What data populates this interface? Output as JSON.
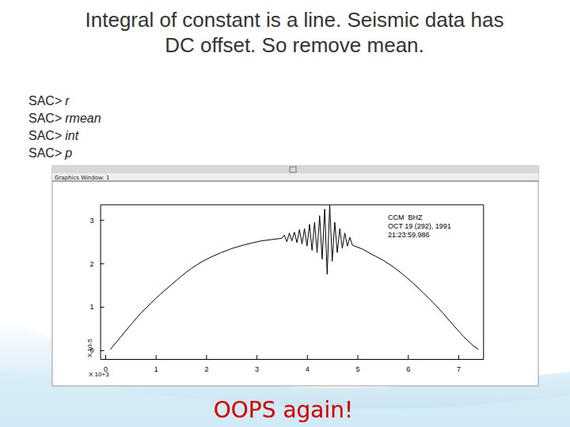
{
  "slide": {
    "title_lines": [
      "Integral of constant is a line. Seismic data has",
      "DC offset. So remove mean."
    ],
    "commands": [
      {
        "prompt": "SAC>",
        "cmd": "r"
      },
      {
        "prompt": "SAC>",
        "cmd": "rmean"
      },
      {
        "prompt": "SAC>",
        "cmd": "int"
      },
      {
        "prompt": "SAC>",
        "cmd": "p"
      }
    ],
    "caption": "OOPS again!"
  },
  "window": {
    "title": "Graphics Window: 1"
  },
  "chart_data": {
    "type": "line",
    "x": [
      0.1,
      0.3,
      0.5,
      0.7,
      0.9,
      1.1,
      1.3,
      1.5,
      1.7,
      1.9,
      2.1,
      2.3,
      2.5,
      2.7,
      2.9,
      3.1,
      3.3,
      3.5,
      3.55,
      3.6,
      3.65,
      3.7,
      3.75,
      3.8,
      3.85,
      3.9,
      3.95,
      4.0,
      4.05,
      4.1,
      4.15,
      4.2,
      4.25,
      4.3,
      4.35,
      4.4,
      4.45,
      4.5,
      4.55,
      4.6,
      4.65,
      4.7,
      4.75,
      4.8,
      4.85,
      4.9,
      5.1,
      5.3,
      5.5,
      5.7,
      5.9,
      6.1,
      6.3,
      6.5,
      6.7,
      6.9,
      7.1,
      7.3,
      7.4
    ],
    "series": [
      {
        "color": "#000000",
        "values": [
          0.02,
          0.3,
          0.58,
          0.85,
          1.08,
          1.3,
          1.5,
          1.7,
          1.88,
          2.03,
          2.15,
          2.25,
          2.34,
          2.41,
          2.47,
          2.52,
          2.55,
          2.58,
          2.65,
          2.5,
          2.7,
          2.52,
          2.72,
          2.48,
          2.78,
          2.45,
          2.8,
          2.4,
          2.9,
          2.3,
          2.95,
          2.25,
          3.1,
          2.1,
          3.25,
          1.75,
          3.35,
          2.05,
          2.95,
          2.25,
          2.8,
          2.35,
          2.7,
          2.4,
          2.6,
          2.42,
          2.33,
          2.2,
          2.08,
          1.93,
          1.75,
          1.55,
          1.33,
          1.1,
          0.85,
          0.58,
          0.32,
          0.1,
          0.02
        ]
      }
    ],
    "xlim": [
      -0.1,
      7.5
    ],
    "xticks": [
      0,
      1,
      2,
      3,
      4,
      5,
      6,
      7
    ],
    "ylim": [
      -0.2,
      3.35
    ],
    "yticks": [
      0,
      1,
      2,
      3
    ],
    "xlabel": "X 10+3",
    "ylabel": "X 10-5",
    "annotations": [
      "CCM  BHZ",
      "OCT 19 (292), 1991",
      "21:23:59.986"
    ]
  }
}
